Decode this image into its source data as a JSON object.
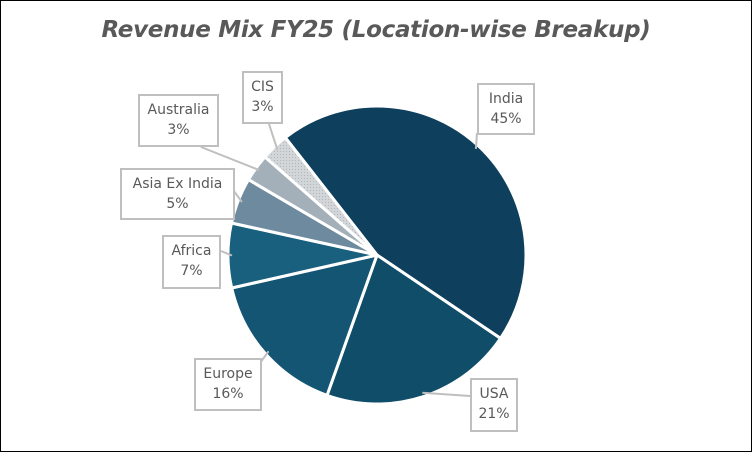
{
  "chart_data": {
    "type": "pie",
    "title": "Revenue Mix FY25 (Location-wise Breakup)",
    "categories": [
      "India",
      "USA",
      "Europe",
      "Africa",
      "Asia Ex India",
      "Australia",
      "CIS"
    ],
    "values": [
      45,
      21,
      16,
      7,
      5,
      3,
      3
    ],
    "labels": [
      "45%",
      "21%",
      "16%",
      "7%",
      "5%",
      "3%",
      "3%"
    ],
    "colors": [
      "#0e3f5c",
      "#0f4d69",
      "#135572",
      "#18607e",
      "#6e8a9e",
      "#a3b0b9",
      "#c9cdd0"
    ],
    "start_angle_deg": 322,
    "direction": "clockwise",
    "legend": "none",
    "data_labels": "callout boxes with category and percent"
  }
}
